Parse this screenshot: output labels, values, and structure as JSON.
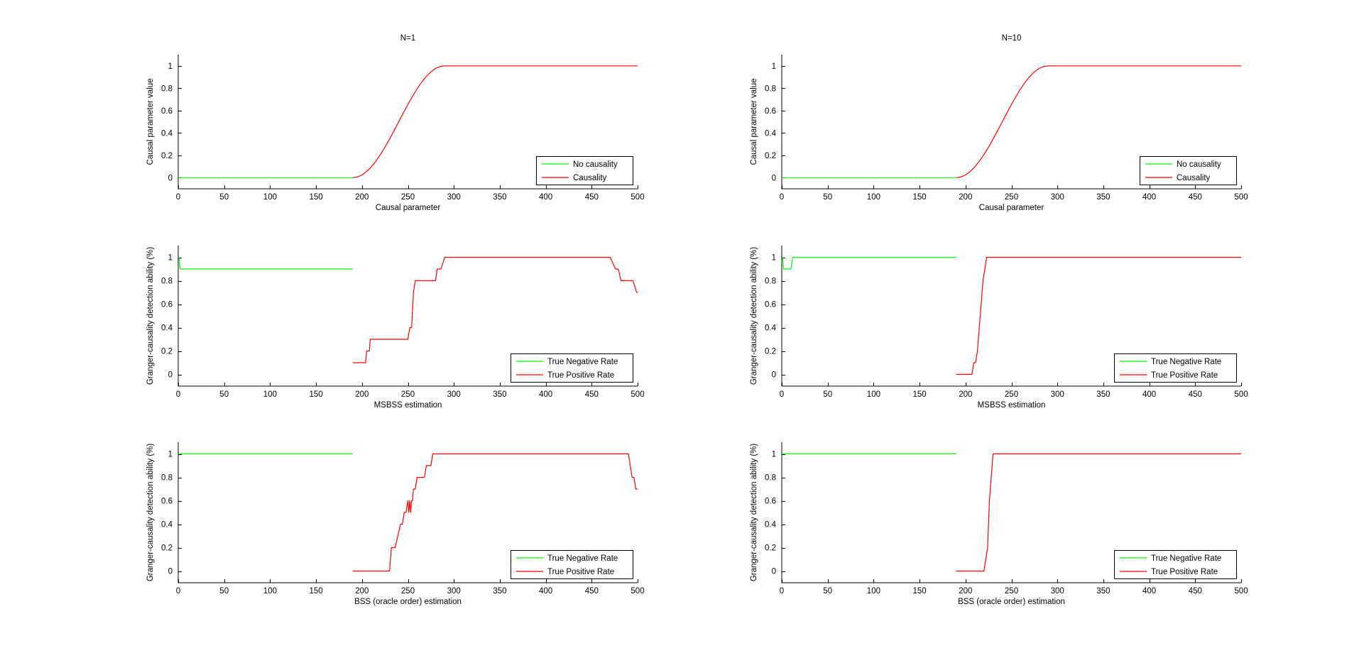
{
  "figure": {
    "background": "#ffffff"
  },
  "colors": {
    "green": "#00ff00",
    "red": "#ff0000"
  },
  "chart_data": [
    {
      "type": "line",
      "title": "N=1",
      "xlabel": "Causal parameter",
      "ylabel": "Causal parameter value",
      "xlim": [
        0,
        500
      ],
      "ylim": [
        -0.1,
        1.1
      ],
      "xticks": [
        0,
        50,
        100,
        150,
        200,
        250,
        300,
        350,
        400,
        450,
        500
      ],
      "yticks": [
        0,
        0.2,
        0.4,
        0.6,
        0.8,
        1
      ],
      "legend_position": "bottom-right",
      "series": [
        {
          "name": "No causality",
          "color": "#00ff00",
          "x": [
            0,
            190
          ],
          "y": [
            0,
            0
          ]
        },
        {
          "name": "Causality",
          "color": "#ff0000",
          "x": [
            190,
            195,
            200,
            205,
            210,
            215,
            220,
            225,
            230,
            235,
            240,
            245,
            250,
            255,
            260,
            265,
            270,
            275,
            280,
            285,
            290,
            500
          ],
          "y": [
            0,
            0.006,
            0.024,
            0.054,
            0.095,
            0.146,
            0.206,
            0.273,
            0.345,
            0.422,
            0.5,
            0.578,
            0.655,
            0.727,
            0.794,
            0.854,
            0.905,
            0.946,
            0.976,
            0.994,
            1,
            1
          ]
        }
      ]
    },
    {
      "type": "line",
      "title": "N=10",
      "xlabel": "Causal parameter",
      "ylabel": "Causal parameter value",
      "xlim": [
        0,
        500
      ],
      "ylim": [
        -0.1,
        1.1
      ],
      "xticks": [
        0,
        50,
        100,
        150,
        200,
        250,
        300,
        350,
        400,
        450,
        500
      ],
      "yticks": [
        0,
        0.2,
        0.4,
        0.6,
        0.8,
        1
      ],
      "legend_position": "bottom-right",
      "series": [
        {
          "name": "No causality",
          "color": "#00ff00",
          "x": [
            0,
            190
          ],
          "y": [
            0,
            0
          ]
        },
        {
          "name": "Causality",
          "color": "#ff0000",
          "x": [
            190,
            195,
            200,
            205,
            210,
            215,
            220,
            225,
            230,
            235,
            240,
            245,
            250,
            255,
            260,
            265,
            270,
            275,
            280,
            285,
            290,
            500
          ],
          "y": [
            0,
            0.006,
            0.024,
            0.054,
            0.095,
            0.146,
            0.206,
            0.273,
            0.345,
            0.422,
            0.5,
            0.578,
            0.655,
            0.727,
            0.794,
            0.854,
            0.905,
            0.946,
            0.976,
            0.994,
            1,
            1
          ]
        }
      ]
    },
    {
      "type": "line",
      "title": "",
      "xlabel": "MSBSS estimation",
      "ylabel": "Granger-causality detection ability (%)",
      "xlim": [
        0,
        500
      ],
      "ylim": [
        -0.1,
        1.1
      ],
      "xticks": [
        0,
        50,
        100,
        150,
        200,
        250,
        300,
        350,
        400,
        450,
        500
      ],
      "yticks": [
        0,
        0.2,
        0.4,
        0.6,
        0.8,
        1
      ],
      "legend_position": "bottom-right",
      "series": [
        {
          "name": "True Negative Rate",
          "color": "#00ff00",
          "x": [
            0,
            1,
            2,
            190
          ],
          "y": [
            1,
            1,
            0.9,
            0.9
          ]
        },
        {
          "name": "True Positive Rate",
          "color": "#ff0000",
          "x": [
            190,
            204,
            205,
            208,
            209,
            250,
            252,
            254,
            256,
            258,
            280,
            282,
            284,
            286,
            290,
            470,
            473,
            476,
            479,
            482,
            495,
            497,
            499,
            500
          ],
          "y": [
            0.1,
            0.1,
            0.2,
            0.2,
            0.3,
            0.3,
            0.4,
            0.4,
            0.7,
            0.8,
            0.8,
            0.9,
            0.9,
            0.9,
            1,
            1,
            0.95,
            0.9,
            0.9,
            0.8,
            0.8,
            0.75,
            0.7,
            0.7
          ]
        }
      ]
    },
    {
      "type": "line",
      "title": "",
      "xlabel": "MSBSS estimation",
      "ylabel": "Granger-causality detection ability (%)",
      "xlim": [
        0,
        500
      ],
      "ylim": [
        -0.1,
        1.1
      ],
      "xticks": [
        0,
        50,
        100,
        150,
        200,
        250,
        300,
        350,
        400,
        450,
        500
      ],
      "yticks": [
        0,
        0.2,
        0.4,
        0.6,
        0.8,
        1
      ],
      "legend_position": "bottom-right",
      "series": [
        {
          "name": "True Negative Rate",
          "color": "#00ff00",
          "x": [
            0,
            1,
            2,
            10,
            12,
            190
          ],
          "y": [
            1,
            1,
            0.9,
            0.9,
            1,
            1
          ]
        },
        {
          "name": "True Positive Rate",
          "color": "#ff0000",
          "x": [
            190,
            207,
            209,
            211,
            213,
            215,
            217,
            219,
            221,
            223,
            500
          ],
          "y": [
            0,
            0,
            0.1,
            0.1,
            0.2,
            0.4,
            0.6,
            0.8,
            0.9,
            1,
            1
          ]
        }
      ]
    },
    {
      "type": "line",
      "title": "",
      "xlabel": "BSS (oracle order) estimation",
      "ylabel": "Granger-causality detection ability (%)",
      "xlim": [
        0,
        500
      ],
      "ylim": [
        -0.1,
        1.1
      ],
      "xticks": [
        0,
        50,
        100,
        150,
        200,
        250,
        300,
        350,
        400,
        450,
        500
      ],
      "yticks": [
        0,
        0.2,
        0.4,
        0.6,
        0.8,
        1
      ],
      "legend_position": "bottom-right",
      "series": [
        {
          "name": "True Negative Rate",
          "color": "#00ff00",
          "x": [
            0,
            190
          ],
          "y": [
            1,
            1
          ]
        },
        {
          "name": "True Positive Rate",
          "color": "#ff0000",
          "x": [
            190,
            230,
            232,
            236,
            239,
            242,
            244,
            246,
            248,
            250,
            251,
            252,
            253,
            254,
            255,
            256,
            258,
            260,
            262,
            265,
            268,
            270,
            275,
            277,
            280,
            490,
            492,
            494,
            496,
            498,
            500
          ],
          "y": [
            0,
            0,
            0.2,
            0.2,
            0.3,
            0.4,
            0.4,
            0.5,
            0.5,
            0.6,
            0.5,
            0.6,
            0.5,
            0.6,
            0.6,
            0.7,
            0.7,
            0.8,
            0.8,
            0.8,
            0.8,
            0.9,
            0.9,
            1,
            1,
            1,
            0.9,
            0.8,
            0.8,
            0.7,
            0.7
          ]
        }
      ]
    },
    {
      "type": "line",
      "title": "",
      "xlabel": "BSS (oracle order) estimation",
      "ylabel": "Granger-causality detection ability (%)",
      "xlim": [
        0,
        500
      ],
      "ylim": [
        -0.1,
        1.1
      ],
      "xticks": [
        0,
        50,
        100,
        150,
        200,
        250,
        300,
        350,
        400,
        450,
        500
      ],
      "yticks": [
        0,
        0.2,
        0.4,
        0.6,
        0.8,
        1
      ],
      "legend_position": "bottom-right",
      "series": [
        {
          "name": "True Negative Rate",
          "color": "#00ff00",
          "x": [
            0,
            190
          ],
          "y": [
            1,
            1
          ]
        },
        {
          "name": "True Positive Rate",
          "color": "#ff0000",
          "x": [
            190,
            220,
            222,
            224,
            225,
            226,
            227,
            228,
            229,
            230,
            500
          ],
          "y": [
            0,
            0,
            0.1,
            0.2,
            0.4,
            0.6,
            0.7,
            0.8,
            0.9,
            1,
            1
          ]
        }
      ]
    }
  ]
}
